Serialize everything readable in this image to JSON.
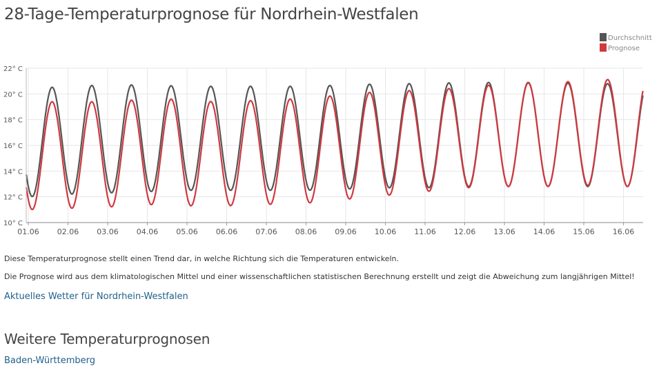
{
  "page": {
    "title": "28-Tage-Temperaturprognose für Nordrhein-Westfalen",
    "note1": "Diese Temperaturprognose stellt einen Trend dar, in welche Richtung sich die Temperaturen entwickeln.",
    "note2": "Die Prognose wird aus dem klimatologischen Mittel und einer wissenschaftlichen statistischen Berechnung erstellt und zeigt die Abweichung zum langjährigen Mittel!",
    "current_weather_link": "Aktuelles Wetter für Nordrhein-Westfalen",
    "more_title": "Weitere Temperaturprognosen",
    "more_links": [
      "Baden-Württemberg"
    ]
  },
  "colors": {
    "durchschnitt": "#555555",
    "prognose": "#d0393f",
    "grid": "#e6e6e6",
    "axis": "#555555",
    "link": "#1f5f8b"
  },
  "chart_data": {
    "type": "line",
    "title": "",
    "xlabel": "",
    "ylabel": "",
    "ylim": [
      10,
      22
    ],
    "yticks": [
      10,
      12,
      14,
      16,
      18,
      20,
      22
    ],
    "ytick_labels": [
      "10° C",
      "12° C",
      "14° C",
      "16° C",
      "18° C",
      "20° C",
      "22° C"
    ],
    "xlim_days": [
      0,
      15.5
    ],
    "x_tick_labels": [
      "01.06",
      "02.06",
      "03.06",
      "04.06",
      "05.06",
      "06.06",
      "07.06",
      "08.06",
      "09.06",
      "10.06",
      "11.06",
      "12.06",
      "13.06",
      "14.06",
      "15.06",
      "16.06"
    ],
    "grid": true,
    "legend_position": "top-right",
    "series": [
      {
        "name": "Durchschnitt",
        "color": "#555555",
        "daily_min": [
          12.0,
          12.2,
          12.3,
          12.4,
          12.5,
          12.5,
          12.5,
          12.5,
          12.6,
          12.7,
          12.7,
          12.8,
          12.8,
          12.8,
          12.8,
          12.8
        ],
        "daily_max": [
          20.4,
          20.6,
          20.7,
          20.7,
          20.6,
          20.6,
          20.6,
          20.6,
          20.7,
          20.8,
          20.8,
          20.9,
          20.9,
          20.9,
          20.8,
          20.8
        ]
      },
      {
        "name": "Prognose",
        "color": "#d0393f",
        "daily_min": [
          11.0,
          11.1,
          11.2,
          11.4,
          11.3,
          11.3,
          11.4,
          11.5,
          11.8,
          12.1,
          12.4,
          12.7,
          12.8,
          12.8,
          12.9,
          12.8
        ],
        "daily_max": [
          19.4,
          19.4,
          19.4,
          19.6,
          19.6,
          19.3,
          19.6,
          19.6,
          20.0,
          20.2,
          20.3,
          20.5,
          20.8,
          20.9,
          21.0,
          21.2
        ]
      }
    ]
  }
}
